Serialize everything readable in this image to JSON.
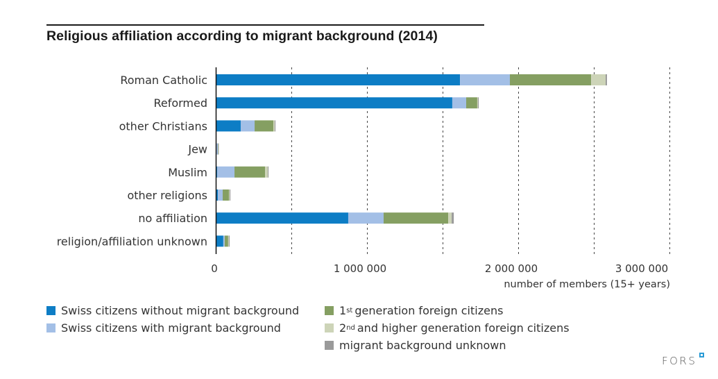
{
  "chart_data": {
    "type": "bar",
    "orientation": "horizontal",
    "stacked": true,
    "title": "Religious affiliation according to migrant background (2014)",
    "xlabel": "number of members (15+ years)",
    "ylabel": "",
    "xlim": [
      0,
      3000000
    ],
    "xticks": [
      0,
      1000000,
      2000000,
      3000000
    ],
    "xtick_labels": [
      "0",
      "1 000 000",
      "2 000 000",
      "3 000 000"
    ],
    "gridlines_every": 500000,
    "grid": true,
    "legend_position": "bottom",
    "categories": [
      "Roman Catholic",
      "Reformed",
      "other Christians",
      "Jew",
      "Muslim",
      "other religions",
      "no affiliation",
      "religion/affiliation unknown"
    ],
    "series": [
      {
        "name": "Swiss citizens without migrant background",
        "color": "#0d7dc5",
        "values": [
          1615000,
          1564000,
          165000,
          5000,
          9000,
          14000,
          876000,
          50000
        ]
      },
      {
        "name": "Swiss citizens with migrant background",
        "color": "#a3bfe6",
        "values": [
          330000,
          92000,
          92000,
          9000,
          115000,
          32000,
          234000,
          9000
        ]
      },
      {
        "name": "1st generation foreign citizens",
        "color": "#859f62",
        "values": [
          537000,
          73000,
          124000,
          2000,
          202000,
          41000,
          427000,
          23000
        ]
      },
      {
        "name": "2nd and higher generation foreign citizens",
        "color": "#cdd4b8",
        "values": [
          96000,
          5000,
          9000,
          1000,
          18000,
          5000,
          23000,
          5000
        ]
      },
      {
        "name": "migrant background unknown",
        "color": "#9a9a9a",
        "values": [
          9000,
          5000,
          5000,
          3000,
          5000,
          5000,
          14000,
          5000
        ]
      }
    ]
  },
  "legend": [
    {
      "pre": "",
      "sup": "",
      "text": "Swiss citizens without migrant background",
      "color": "#0d7dc5"
    },
    {
      "pre": "",
      "sup": "",
      "text": "Swiss citizens with migrant background",
      "color": "#a3bfe6"
    },
    {
      "pre": "1",
      "sup": "st",
      "text": "generation foreign citizens",
      "color": "#859f62"
    },
    {
      "pre": "2",
      "sup": "nd",
      "text": "and higher generation foreign citizens",
      "color": "#cdd4b8"
    },
    {
      "pre": "",
      "sup": "",
      "text": "migrant background unknown",
      "color": "#9a9a9a"
    }
  ],
  "logo": {
    "text": "FORS"
  }
}
